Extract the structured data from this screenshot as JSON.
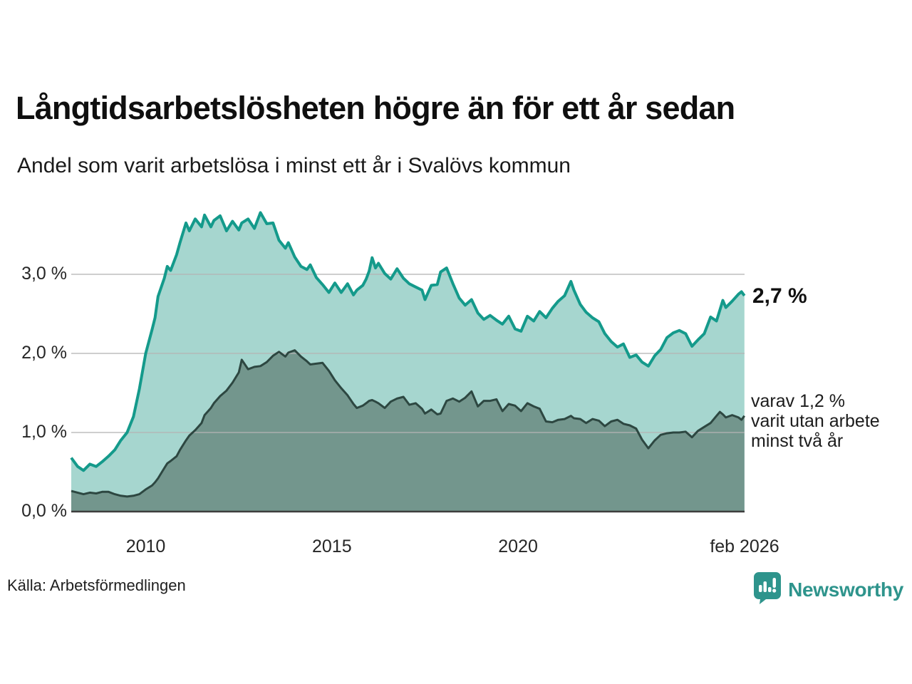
{
  "header": {
    "title": "Långtidsarbetslösheten högre än för ett år sedan",
    "subtitle": "Andel som varit arbetslösa i minst ett år i Svalövs kommun"
  },
  "annotations": {
    "latest_total": "2,7 %",
    "latest_two_years_lines": [
      "varav 1,2 %",
      "varit utan arbete",
      "minst två år"
    ]
  },
  "footer": {
    "source": "Källa: Arbetsförmedlingen",
    "brand": "Newsworthy",
    "brand_icon": "newsworthy-bar-chart-bubble-icon",
    "brand_color": "#2e948c"
  },
  "colors": {
    "series1_line": "#149a8b",
    "series1_fill": "#a6d6cf",
    "series2_line": "#2d4741",
    "series2_fill": "#73968d",
    "gridline": "#d9d9d9",
    "axis": "#3d3d3d",
    "text": "#1a1a1a"
  },
  "chart_data": {
    "type": "area",
    "title": "Långtidsarbetslösheten högre än för ett år sedan",
    "subtitle": "Andel som varit arbetslösa i minst ett år i Svalövs kommun",
    "x_unit": "decimal_year",
    "xlim": [
      2008.0,
      2026.083
    ],
    "ylim": [
      0,
      3.9
    ],
    "grid": "horizontal",
    "legend": "none",
    "yticks": [
      {
        "value": 0.0,
        "label": "0,0 %"
      },
      {
        "value": 1.0,
        "label": "1,0 %"
      },
      {
        "value": 2.0,
        "label": "2,0 %"
      },
      {
        "value": 3.0,
        "label": "3,0 %"
      }
    ],
    "xticks": [
      {
        "value": 2010.0,
        "label": "2010"
      },
      {
        "value": 2015.0,
        "label": "2015"
      },
      {
        "value": 2020.0,
        "label": "2020"
      },
      {
        "value": 2026.083,
        "label": "feb 2026"
      }
    ],
    "series_meta": [
      {
        "name": "arbetslösa i minst ett år",
        "end_label": "2,7 %",
        "line_color": "#149a8b",
        "fill_color": "#a6d6cf",
        "line_width": 4
      },
      {
        "name": "varit utan arbete minst två år",
        "end_label": "varav 1,2 % varit utan arbete minst två år",
        "line_color": "#2d4741",
        "fill_color": "#73968d",
        "line_width": 3
      }
    ],
    "points_format": [
      "year_decimal",
      "share_min_one_year_pct",
      "share_min_two_years_pct"
    ],
    "points": [
      [
        2008.0,
        0.68,
        0.26
      ],
      [
        2008.17,
        0.57,
        0.24
      ],
      [
        2008.33,
        0.52,
        0.22
      ],
      [
        2008.5,
        0.6,
        0.24
      ],
      [
        2008.67,
        0.57,
        0.23
      ],
      [
        2008.83,
        0.63,
        0.25
      ],
      [
        2009.0,
        0.7,
        0.25
      ],
      [
        2009.17,
        0.78,
        0.22
      ],
      [
        2009.33,
        0.9,
        0.2
      ],
      [
        2009.5,
        1.0,
        0.19
      ],
      [
        2009.67,
        1.2,
        0.2
      ],
      [
        2009.83,
        1.55,
        0.22
      ],
      [
        2010.0,
        2.0,
        0.28
      ],
      [
        2010.17,
        2.3,
        0.33
      ],
      [
        2010.25,
        2.45,
        0.37
      ],
      [
        2010.33,
        2.72,
        0.42
      ],
      [
        2010.5,
        2.95,
        0.55
      ],
      [
        2010.58,
        3.1,
        0.61
      ],
      [
        2010.67,
        3.05,
        0.64
      ],
      [
        2010.83,
        3.25,
        0.7
      ],
      [
        2010.92,
        3.4,
        0.78
      ],
      [
        2011.08,
        3.65,
        0.9
      ],
      [
        2011.17,
        3.55,
        0.96
      ],
      [
        2011.33,
        3.7,
        1.03
      ],
      [
        2011.5,
        3.6,
        1.12
      ],
      [
        2011.58,
        3.75,
        1.22
      ],
      [
        2011.75,
        3.6,
        1.31
      ],
      [
        2011.83,
        3.68,
        1.37
      ],
      [
        2012.0,
        3.74,
        1.46
      ],
      [
        2012.17,
        3.55,
        1.53
      ],
      [
        2012.33,
        3.67,
        1.63
      ],
      [
        2012.5,
        3.56,
        1.76
      ],
      [
        2012.58,
        3.65,
        1.92
      ],
      [
        2012.75,
        3.7,
        1.8
      ],
      [
        2012.92,
        3.58,
        1.83
      ],
      [
        2013.08,
        3.78,
        1.84
      ],
      [
        2013.25,
        3.64,
        1.89
      ],
      [
        2013.42,
        3.65,
        1.97
      ],
      [
        2013.58,
        3.43,
        2.02
      ],
      [
        2013.75,
        3.33,
        1.96
      ],
      [
        2013.83,
        3.4,
        2.01
      ],
      [
        2014.0,
        3.22,
        2.04
      ],
      [
        2014.17,
        3.1,
        1.96
      ],
      [
        2014.33,
        3.06,
        1.9
      ],
      [
        2014.42,
        3.12,
        1.86
      ],
      [
        2014.58,
        2.96,
        1.87
      ],
      [
        2014.75,
        2.87,
        1.88
      ],
      [
        2014.92,
        2.77,
        1.78
      ],
      [
        2015.08,
        2.89,
        1.66
      ],
      [
        2015.25,
        2.77,
        1.56
      ],
      [
        2015.42,
        2.88,
        1.47
      ],
      [
        2015.58,
        2.74,
        1.36
      ],
      [
        2015.67,
        2.8,
        1.31
      ],
      [
        2015.83,
        2.86,
        1.34
      ],
      [
        2015.92,
        2.94,
        1.37
      ],
      [
        2016.0,
        3.04,
        1.4
      ],
      [
        2016.08,
        3.21,
        1.41
      ],
      [
        2016.17,
        3.08,
        1.39
      ],
      [
        2016.25,
        3.14,
        1.37
      ],
      [
        2016.42,
        3.01,
        1.31
      ],
      [
        2016.58,
        2.94,
        1.39
      ],
      [
        2016.75,
        3.07,
        1.43
      ],
      [
        2016.92,
        2.95,
        1.45
      ],
      [
        2017.08,
        2.88,
        1.35
      ],
      [
        2017.25,
        2.84,
        1.37
      ],
      [
        2017.42,
        2.8,
        1.3
      ],
      [
        2017.5,
        2.68,
        1.24
      ],
      [
        2017.67,
        2.86,
        1.29
      ],
      [
        2017.83,
        2.87,
        1.23
      ],
      [
        2017.92,
        3.03,
        1.24
      ],
      [
        2018.08,
        3.08,
        1.4
      ],
      [
        2018.25,
        2.88,
        1.43
      ],
      [
        2018.42,
        2.7,
        1.39
      ],
      [
        2018.58,
        2.61,
        1.44
      ],
      [
        2018.75,
        2.68,
        1.52
      ],
      [
        2018.92,
        2.51,
        1.33
      ],
      [
        2019.08,
        2.43,
        1.4
      ],
      [
        2019.25,
        2.48,
        1.4
      ],
      [
        2019.42,
        2.42,
        1.42
      ],
      [
        2019.58,
        2.37,
        1.27
      ],
      [
        2019.75,
        2.47,
        1.36
      ],
      [
        2019.92,
        2.31,
        1.34
      ],
      [
        2020.08,
        2.28,
        1.27
      ],
      [
        2020.25,
        2.47,
        1.37
      ],
      [
        2020.42,
        2.41,
        1.33
      ],
      [
        2020.58,
        2.53,
        1.3
      ],
      [
        2020.75,
        2.45,
        1.14
      ],
      [
        2020.92,
        2.57,
        1.13
      ],
      [
        2021.08,
        2.66,
        1.16
      ],
      [
        2021.25,
        2.73,
        1.17
      ],
      [
        2021.42,
        2.91,
        1.21
      ],
      [
        2021.5,
        2.8,
        1.18
      ],
      [
        2021.67,
        2.62,
        1.17
      ],
      [
        2021.83,
        2.52,
        1.12
      ],
      [
        2022.0,
        2.45,
        1.17
      ],
      [
        2022.17,
        2.4,
        1.15
      ],
      [
        2022.33,
        2.25,
        1.08
      ],
      [
        2022.5,
        2.15,
        1.14
      ],
      [
        2022.67,
        2.08,
        1.16
      ],
      [
        2022.83,
        2.12,
        1.11
      ],
      [
        2023.0,
        1.95,
        1.09
      ],
      [
        2023.17,
        1.98,
        1.05
      ],
      [
        2023.33,
        1.89,
        0.91
      ],
      [
        2023.5,
        1.84,
        0.8
      ],
      [
        2023.67,
        1.97,
        0.9
      ],
      [
        2023.83,
        2.05,
        0.97
      ],
      [
        2024.0,
        2.2,
        0.99
      ],
      [
        2024.17,
        2.26,
        1.0
      ],
      [
        2024.33,
        2.29,
        1.0
      ],
      [
        2024.5,
        2.25,
        1.01
      ],
      [
        2024.67,
        2.09,
        0.94
      ],
      [
        2024.83,
        2.17,
        1.02
      ],
      [
        2025.0,
        2.25,
        1.07
      ],
      [
        2025.17,
        2.46,
        1.12
      ],
      [
        2025.33,
        2.41,
        1.21
      ],
      [
        2025.42,
        2.55,
        1.26
      ],
      [
        2025.5,
        2.67,
        1.23
      ],
      [
        2025.58,
        2.58,
        1.19
      ],
      [
        2025.75,
        2.66,
        1.22
      ],
      [
        2025.92,
        2.75,
        1.19
      ],
      [
        2026.0,
        2.78,
        1.16
      ],
      [
        2026.08,
        2.73,
        1.21
      ]
    ]
  }
}
